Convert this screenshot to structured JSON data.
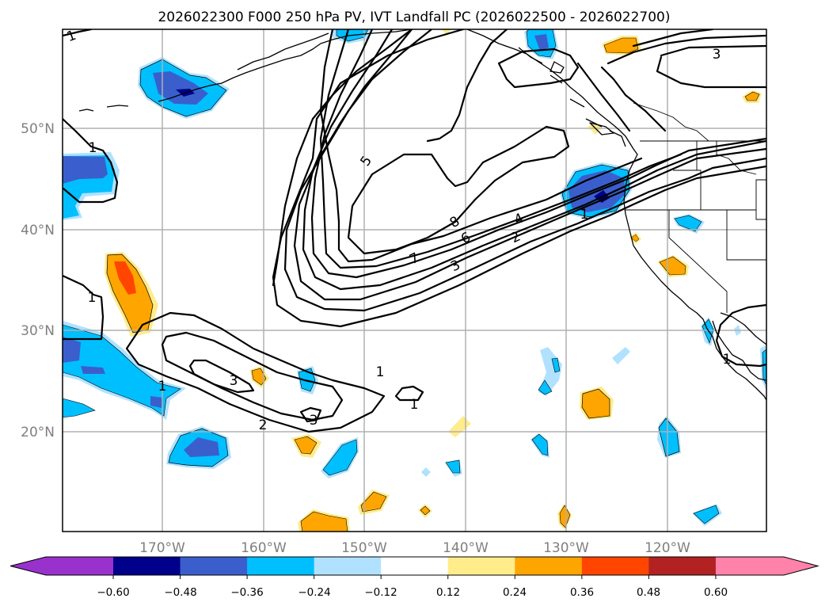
{
  "title": "2026022300 F000 250 hPa PV, IVT Landfall PC (2026022500 - 2026022700)",
  "map": {
    "lat_ticks": [
      "50°N",
      "40°N",
      "30°N",
      "20°N"
    ],
    "lon_ticks": [
      "170°W",
      "160°W",
      "150°W",
      "140°W",
      "130°W",
      "120°W"
    ],
    "contour_labels": [
      "1",
      "1",
      "1",
      "1",
      "1",
      "1",
      "3",
      "2",
      "3",
      "1",
      "5",
      "8",
      "7",
      "6",
      "4",
      "3",
      "2",
      "1",
      "3"
    ]
  },
  "colorbar": {
    "ticks": [
      "−0.60",
      "−0.48",
      "−0.36",
      "−0.24",
      "−0.12",
      "0.12",
      "0.24",
      "0.36",
      "0.48",
      "0.60"
    ],
    "colors": [
      "#9932cc",
      "#00008b",
      "#3a5fcd",
      "#00bfff",
      "#b0e2ff",
      "#ffffff",
      "#ffec8b",
      "#ffa500",
      "#ff4500",
      "#b22222",
      "#ff82ab"
    ]
  },
  "colors": {
    "c_under": "#9932cc",
    "c_m060": "#00008b",
    "c_m048": "#3a5fcd",
    "c_m036": "#00bfff",
    "c_m024": "#b0e2ff",
    "c_p012": "#ffec8b",
    "c_p024": "#ffa500",
    "c_p036": "#ff4500",
    "grid": "#b0b0b0",
    "tick_text": "#7f7f7f"
  }
}
